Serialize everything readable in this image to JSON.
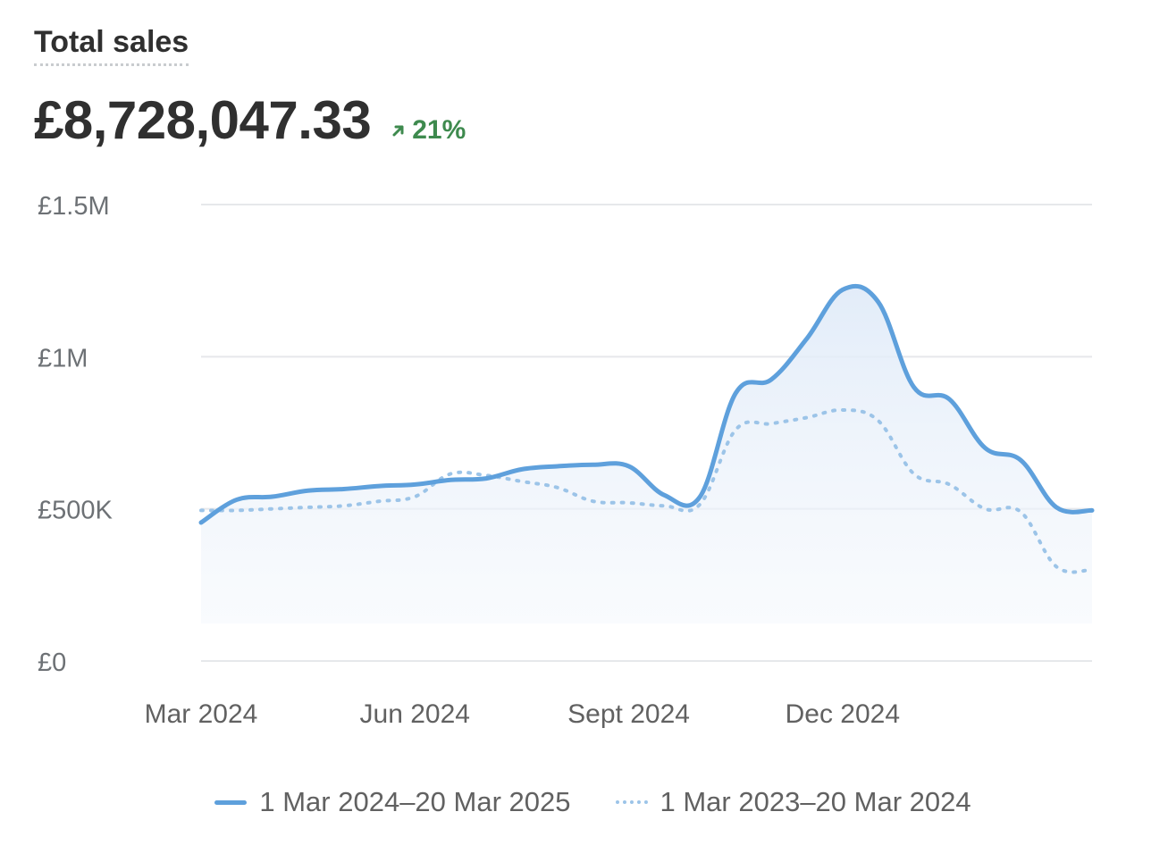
{
  "header": {
    "title": "Total sales",
    "value": "£8,728,047.33",
    "change": "21%",
    "change_direction": "up",
    "change_color": "#3e8a4e"
  },
  "colors": {
    "current": "#5ea0dc",
    "previous": "#9cc4e8",
    "grid": "#e6e8eb",
    "area": "#e8f1fb"
  },
  "chart_data": {
    "type": "line",
    "title": "Total sales",
    "x": [
      "1 Mar 2024",
      "15 Mar 2024",
      "1 Apr 2024",
      "15 Apr 2024",
      "1 May 2024",
      "15 May 2024",
      "1 Jun 2024",
      "15 Jun 2024",
      "1 Jul 2024",
      "15 Jul 2024",
      "1 Aug 2024",
      "15 Aug 2024",
      "1 Sept 2024",
      "15 Sept 2024",
      "1 Oct 2024",
      "15 Oct 2024",
      "1 Nov 2024",
      "15 Nov 2024",
      "1 Dec 2024",
      "15 Dec 2024",
      "1 Jan 2025",
      "15 Jan 2025",
      "1 Feb 2025",
      "15 Feb 2025",
      "1 Mar 2025",
      "20 Mar 2025"
    ],
    "series": [
      {
        "name": "1 Mar 2024–20 Mar 2025",
        "style": "solid",
        "values": [
          455000,
          530000,
          540000,
          560000,
          565000,
          575000,
          580000,
          595000,
          600000,
          630000,
          640000,
          645000,
          640000,
          545000,
          540000,
          880000,
          925000,
          1060000,
          1220000,
          1180000,
          900000,
          860000,
          700000,
          660000,
          505000,
          495000
        ]
      },
      {
        "name": "1 Mar 2023–20 Mar 2024",
        "style": "dotted",
        "values": [
          495000,
          495000,
          500000,
          505000,
          510000,
          525000,
          540000,
          615000,
          610000,
          590000,
          570000,
          525000,
          520000,
          510000,
          515000,
          760000,
          780000,
          800000,
          825000,
          790000,
          615000,
          580000,
          500000,
          490000,
          310000,
          300000
        ]
      }
    ],
    "x_ticks": [
      "Mar 2024",
      "Jun 2024",
      "Sept 2024",
      "Dec 2024"
    ],
    "y_ticks": [
      "£0",
      "£500K",
      "£1M",
      "£1.5M"
    ],
    "y_tick_values": [
      0,
      500000,
      1000000,
      1500000
    ],
    "ylim": [
      0,
      1500000
    ],
    "xlabel": "",
    "ylabel": "",
    "grid": true,
    "legend": "bottom-center"
  }
}
